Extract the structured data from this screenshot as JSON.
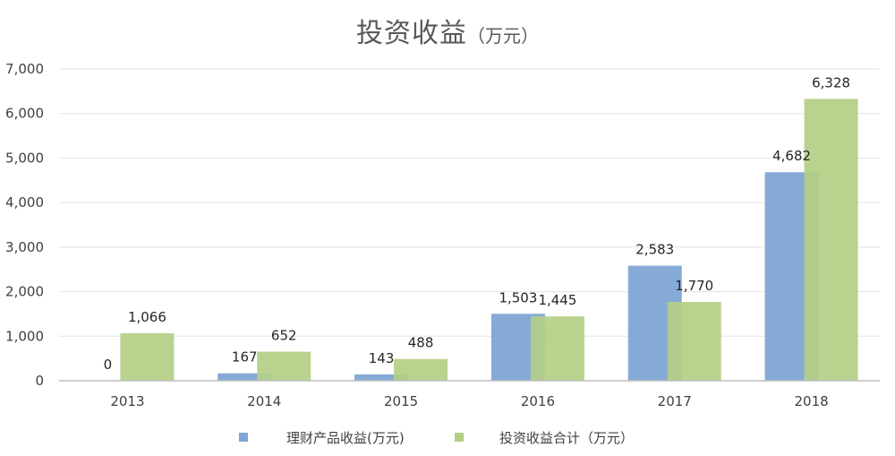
{
  "chart_data": {
    "type": "bar",
    "title": "投资收益",
    "subtitle": "（万元）",
    "xlabel": "",
    "ylabel": "",
    "categories": [
      "2013",
      "2014",
      "2015",
      "2016",
      "2017",
      "2018"
    ],
    "series": [
      {
        "name": "理财产品收益(万元)",
        "color": "#7fa5d4",
        "values": [
          0,
          167,
          143,
          1503,
          2583,
          4682
        ],
        "labels": [
          "0",
          "167",
          "143",
          "1,503",
          "2,583",
          "4,682"
        ]
      },
      {
        "name": "投资收益合计（万元）",
        "color": "#b3cf86",
        "values": [
          1066,
          652,
          488,
          1445,
          1770,
          6328
        ],
        "labels": [
          "1,066",
          "652",
          "488",
          "1,445",
          "1,770",
          "6,328"
        ]
      }
    ],
    "ylim": [
      0,
      7000
    ],
    "yticks": [
      0,
      1000,
      2000,
      3000,
      4000,
      5000,
      6000,
      7000
    ],
    "ytick_labels": [
      "0",
      "1,000",
      "2,000",
      "3,000",
      "4,000",
      "5,000",
      "6,000",
      "7,000"
    ],
    "grid": true,
    "legend_position": "bottom"
  }
}
